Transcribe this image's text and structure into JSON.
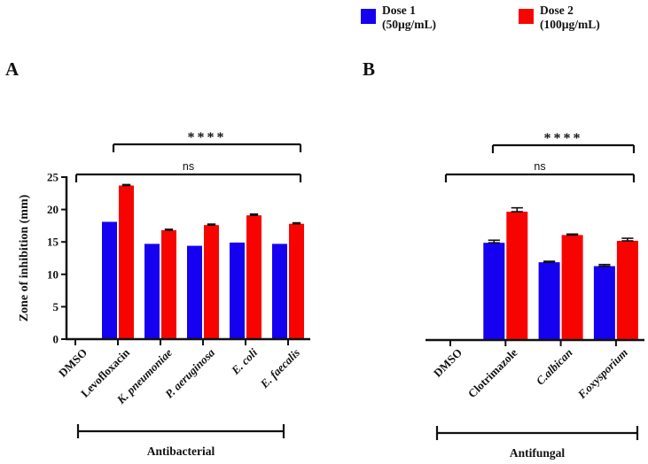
{
  "figure": {
    "panel_a_label": "A",
    "panel_b_label": "B"
  },
  "legend": {
    "items": [
      {
        "name": "Dose 1",
        "dose": "(50µg/mL)",
        "color": "#1500F0"
      },
      {
        "name": "Dose 2",
        "dose": "(100µg/mL)",
        "color": "#F80400"
      }
    ]
  },
  "chart_data": [
    {
      "type": "bar",
      "panel": "A",
      "title": "",
      "xlabel": "",
      "ylabel": "Zone of inhibition (mm)",
      "ylim": [
        0,
        25
      ],
      "yticks": [
        0,
        5,
        10,
        15,
        20,
        25
      ],
      "grid": false,
      "legend_position": "top",
      "categories": [
        "DMSO",
        "Levofloxacin",
        "K. pneumoniae",
        "P. aeruginosa",
        "E. coli",
        "E. faecalis"
      ],
      "italic_categories": [
        false,
        false,
        true,
        true,
        true,
        true
      ],
      "series": [
        {
          "name": "Dose 1 (50µg/mL)",
          "color": "#1500F0",
          "values": [
            0,
            18.1,
            14.7,
            14.4,
            14.9,
            14.7
          ],
          "errors": [
            0,
            0,
            0,
            0,
            0,
            0
          ]
        },
        {
          "name": "Dose 2 (100µg/mL)",
          "color": "#F80400",
          "values": [
            0,
            23.7,
            16.8,
            17.6,
            19.1,
            17.8
          ],
          "errors": [
            0,
            0.15,
            0.15,
            0.15,
            0.2,
            0.15
          ]
        }
      ],
      "annotations": [
        {
          "label": "****",
          "from_category": "Levofloxacin",
          "to_category": "E. faecalis"
        },
        {
          "label": "ns",
          "from_category": "DMSO",
          "to_category": "E. faecalis"
        }
      ],
      "group_bracket": {
        "label": "Antibacterial",
        "from_category": "DMSO",
        "to_category": "E. faecalis"
      }
    },
    {
      "type": "bar",
      "panel": "B",
      "title": "",
      "xlabel": "",
      "ylabel": "",
      "ylim": [
        0,
        25
      ],
      "yticks": [],
      "grid": false,
      "legend_position": "top",
      "categories": [
        "DMSO",
        "Clotrimazole",
        "C.albican",
        "F.oxysporium"
      ],
      "italic_categories": [
        false,
        false,
        true,
        true
      ],
      "series": [
        {
          "name": "Dose 1 (50µg/mL)",
          "color": "#1500F0",
          "values": [
            0,
            15.0,
            12.0,
            11.4
          ],
          "errors": [
            0,
            0.4,
            0.15,
            0.25
          ]
        },
        {
          "name": "Dose 2 (100µg/mL)",
          "color": "#F80400",
          "values": [
            0,
            19.8,
            16.2,
            15.3
          ],
          "errors": [
            0,
            0.6,
            0.15,
            0.4
          ]
        }
      ],
      "annotations": [
        {
          "label": "****",
          "from_category": "Clotrimazole",
          "to_category": "F.oxysporium"
        },
        {
          "label": "ns",
          "from_category": "DMSO",
          "to_category": "F.oxysporium"
        }
      ],
      "group_bracket": {
        "label": "Antifungal",
        "from_category": "DMSO",
        "to_category": "F.oxysporium"
      }
    }
  ]
}
